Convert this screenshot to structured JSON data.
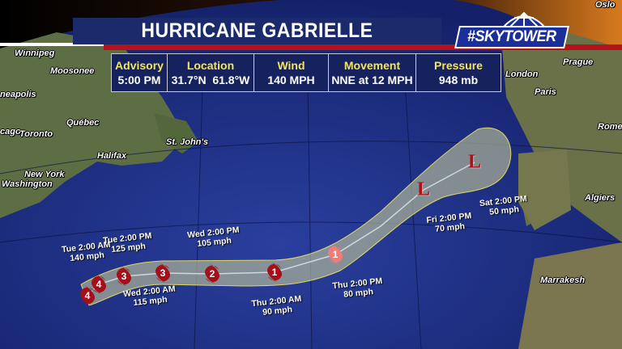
{
  "header": {
    "title": "HURRICANE GABRIELLE",
    "logo_text": "#SKYTOWER"
  },
  "advisory_table": {
    "columns": [
      {
        "heading": "Advisory",
        "value": "5:00 PM"
      },
      {
        "heading": "Location",
        "value": "31.7°N  61.8°W"
      },
      {
        "heading": "Wind",
        "value": "140 MPH"
      },
      {
        "heading": "Movement",
        "value": "NNE at 12 MPH"
      },
      {
        "heading": "Pressure",
        "value": "948 mb"
      }
    ]
  },
  "cities": [
    "Oslo",
    "Winnipeg",
    "Moosonee",
    "neapolis",
    "cago",
    "Toronto",
    "Québec",
    "Halifax",
    "New York",
    "Washington",
    "St. John's",
    "London",
    "Paris",
    "Prague",
    "Rome",
    "Algiers",
    "Marrakesh"
  ],
  "forecast_points": [
    {
      "time": "Tue 2:00 AM",
      "wind": "140 mph",
      "category": "4"
    },
    {
      "time": "Tue 2:00 PM",
      "wind": "125 mph",
      "category": "3"
    },
    {
      "time": "Wed 2:00 AM",
      "wind": "115 mph",
      "category": "3"
    },
    {
      "time": "Wed 2:00 PM",
      "wind": "105 mph",
      "category": "2"
    },
    {
      "time": "Thu 2:00 AM",
      "wind": "90 mph",
      "category": "1"
    },
    {
      "time": "Thu 2:00 PM",
      "wind": "80 mph",
      "category": "1"
    },
    {
      "time": "Fri 2:00 PM",
      "wind": "70 mph",
      "category": "L"
    },
    {
      "time": "Sat 2:00 PM",
      "wind": "50 mph",
      "category": "L"
    }
  ],
  "current_position": {
    "category": "4"
  },
  "colors": {
    "ocean": "#1c2f86",
    "cone": "#b8bf98",
    "hurricane_marker": "#a3101a",
    "post_tropical_marker": "#f07b7b",
    "low_symbol": "#b30f17",
    "title_bar": "#1b2a6a",
    "accent_red": "#b5121b",
    "table_heading": "#f4e55a"
  }
}
